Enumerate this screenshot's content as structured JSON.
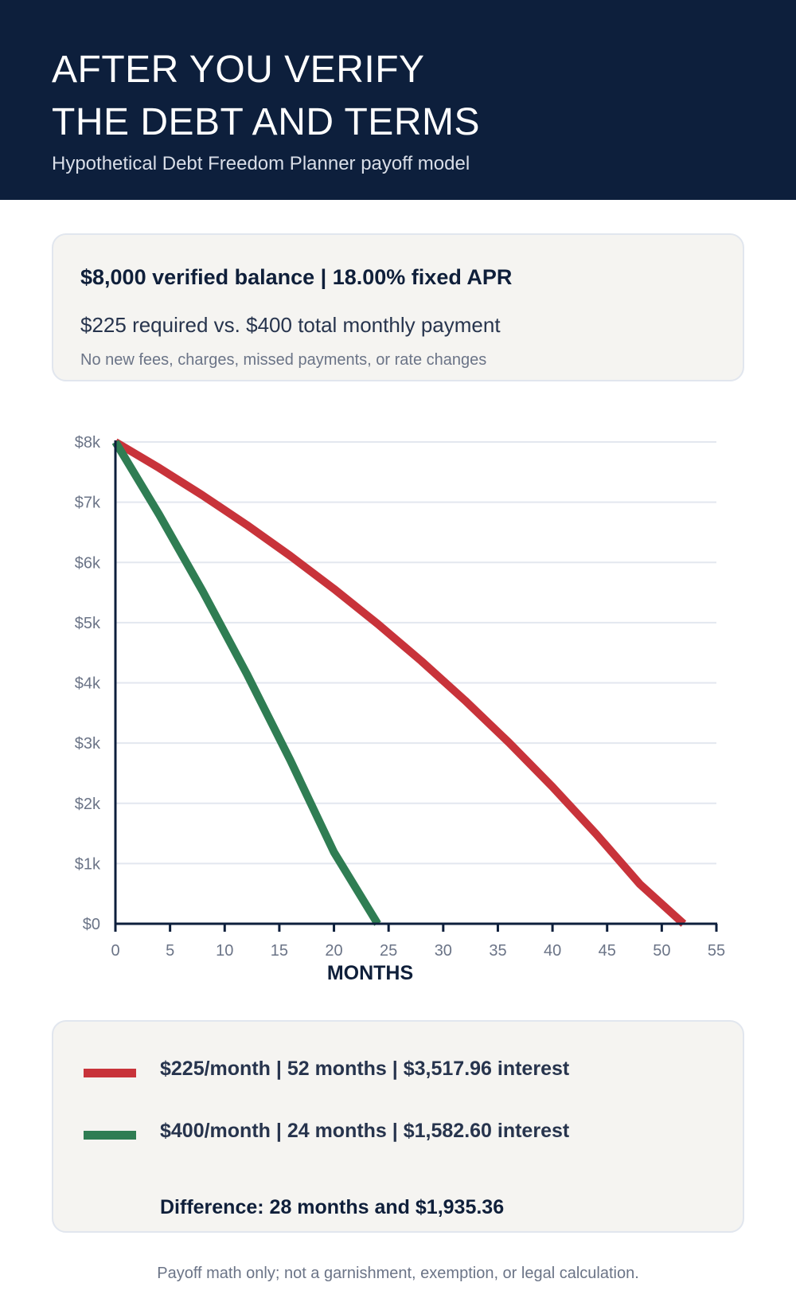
{
  "header": {
    "title_line1": "AFTER YOU VERIFY",
    "title_line2": "THE DEBT AND TERMS",
    "subtitle": "Hypothetical Debt Freedom Planner payoff model"
  },
  "assumptions": {
    "line1": "$8,000 verified balance  |  18.00% fixed APR",
    "line2": "$225 required vs. $400 total monthly payment",
    "line3": "No new fees, charges, missed payments, or rate changes"
  },
  "legend": {
    "items": [
      {
        "text": "$225/month  |  52 months  |  $3,517.96 interest",
        "color": "#c8333a"
      },
      {
        "text": "$400/month  |  24 months  |  $1,582.60 interest",
        "color": "#2f7d53"
      }
    ],
    "difference": "Difference: 28 months and $1,935.36"
  },
  "footer": "Payoff math only; not a garnishment, exemption, or legal calculation.",
  "chart_data": {
    "type": "line",
    "xlabel": "MONTHS",
    "ylabel": "",
    "xlim": [
      0,
      55
    ],
    "ylim": [
      0,
      8000
    ],
    "x_ticks": [
      0,
      5,
      10,
      15,
      20,
      25,
      30,
      35,
      40,
      45,
      50,
      55
    ],
    "x_tick_labels": [
      "0",
      "5",
      "10",
      "15",
      "20",
      "25",
      "30",
      "35",
      "40",
      "45",
      "50",
      "55"
    ],
    "y_ticks": [
      0,
      1000,
      2000,
      3000,
      4000,
      5000,
      6000,
      7000,
      8000
    ],
    "y_tick_labels": [
      "$0",
      "$1k",
      "$2k",
      "$3k",
      "$4k",
      "$5k",
      "$6k",
      "$7k",
      "$8k"
    ],
    "grid": true,
    "series": [
      {
        "color": "#c8333a",
        "x": [
          0,
          4,
          8,
          12,
          16,
          20,
          24,
          28,
          32,
          36,
          40,
          44,
          48,
          52
        ],
        "y": [
          8000,
          7569,
          7111,
          6625,
          6109,
          5561,
          4979,
          4362,
          3707,
          3011,
          2273,
          1489,
          657,
          0
        ]
      },
      {
        "color": "#2f7d53",
        "x": [
          0,
          4,
          8,
          12,
          16,
          20,
          24
        ],
        "y": [
          8000,
          6795,
          5516,
          4158,
          2717,
          1188,
          0
        ]
      }
    ]
  }
}
